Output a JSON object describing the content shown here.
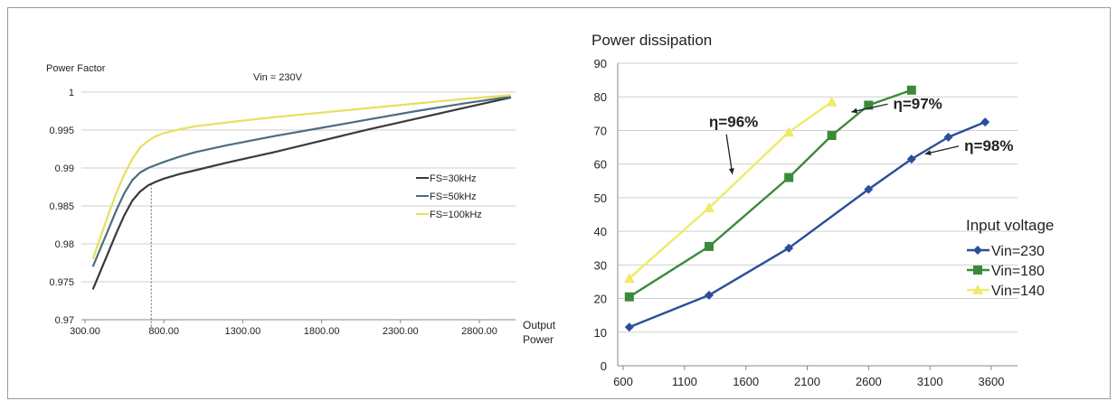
{
  "chart_data": [
    {
      "type": "line",
      "title": "",
      "ylabel": "Power Factor",
      "xlabel": "Output Power",
      "annotation": "Vin = 230V",
      "xlim": [
        300,
        3050
      ],
      "ylim": [
        0.97,
        1.0
      ],
      "x_ticks": [
        "300.00",
        "800.00",
        "1300.00",
        "1800.00",
        "2300.00",
        "2800.00"
      ],
      "x_tick_values": [
        300,
        800,
        1300,
        1800,
        2300,
        2800
      ],
      "y_ticks": [
        "0.97",
        "0.975",
        "0.98",
        "0.985",
        "0.99",
        "0.995",
        "1"
      ],
      "y_tick_values": [
        0.97,
        0.975,
        0.98,
        0.985,
        0.99,
        0.995,
        1.0
      ],
      "grid": "horizontal",
      "legend_position": "right",
      "reference_line_x": 720,
      "series": [
        {
          "name": "FS=30kHz",
          "color": "#3a3a3a",
          "x": [
            350,
            400,
            450,
            500,
            550,
            600,
            650,
            700,
            750,
            800,
            900,
            1000,
            1200,
            1500,
            1800,
            2100,
            2400,
            2700,
            3000
          ],
          "y": [
            0.974,
            0.9765,
            0.979,
            0.9815,
            0.9838,
            0.9857,
            0.9869,
            0.9877,
            0.9882,
            0.9886,
            0.9892,
            0.9897,
            0.9907,
            0.9921,
            0.9936,
            0.9951,
            0.9965,
            0.9979,
            0.9993
          ]
        },
        {
          "name": "FS=50kHz",
          "color": "#4a6e80",
          "x": [
            350,
            400,
            450,
            500,
            550,
            600,
            650,
            700,
            750,
            800,
            900,
            1000,
            1200,
            1500,
            1800,
            2100,
            2400,
            2700,
            3000
          ],
          "y": [
            0.977,
            0.9795,
            0.982,
            0.9845,
            0.9867,
            0.9884,
            0.9894,
            0.99,
            0.9904,
            0.9908,
            0.9915,
            0.9921,
            0.993,
            0.9942,
            0.9953,
            0.9964,
            0.9975,
            0.9985,
            0.9994
          ]
        },
        {
          "name": "FS=100kHz",
          "color": "#e6e05a",
          "x": [
            350,
            400,
            450,
            500,
            550,
            600,
            650,
            700,
            750,
            800,
            900,
            1000,
            1200,
            1500,
            1800,
            2100,
            2400,
            2700,
            3000
          ],
          "y": [
            0.978,
            0.981,
            0.984,
            0.9868,
            0.9892,
            0.9912,
            0.9927,
            0.9936,
            0.9942,
            0.9946,
            0.9951,
            0.9955,
            0.996,
            0.9967,
            0.9973,
            0.9979,
            0.9985,
            0.9991,
            0.9996
          ]
        }
      ]
    },
    {
      "type": "line",
      "title": "Power dissipation",
      "xlabel": "",
      "ylabel": "",
      "xlim": [
        600,
        3700
      ],
      "ylim": [
        0,
        90
      ],
      "x_ticks": [
        "600",
        "1100",
        "1600",
        "2100",
        "2600",
        "3100",
        "3600"
      ],
      "x_tick_values": [
        600,
        1100,
        1600,
        2100,
        2600,
        3100,
        3600
      ],
      "y_ticks": [
        "0",
        "10",
        "20",
        "30",
        "40",
        "50",
        "60",
        "70",
        "80",
        "90"
      ],
      "y_tick_values": [
        0,
        10,
        20,
        30,
        40,
        50,
        60,
        70,
        80,
        90
      ],
      "grid": "horizontal",
      "legend_title": "Input voltage",
      "legend_position": "right",
      "series": [
        {
          "name": "Vin=230",
          "color": "#2a4f9a",
          "marker": "diamond",
          "x": [
            650,
            1300,
            1950,
            2600,
            2950,
            3250,
            3550
          ],
          "y": [
            11.5,
            21,
            35,
            52.5,
            61.5,
            68,
            72.5
          ]
        },
        {
          "name": "Vin=180",
          "color": "#3b8a3b",
          "marker": "square",
          "x": [
            650,
            1300,
            1950,
            2300,
            2600,
            2950
          ],
          "y": [
            20.5,
            35.5,
            56,
            68.5,
            77.5,
            82
          ]
        },
        {
          "name": "Vin=140",
          "color": "#eeea6a",
          "marker": "triangle",
          "x": [
            650,
            1300,
            1950,
            2300
          ],
          "y": [
            26,
            47,
            69.5,
            78.5
          ]
        }
      ],
      "annotations": [
        {
          "text": "η=96%",
          "x": 1500,
          "y": 71,
          "arrow_to": [
            1490,
            57
          ]
        },
        {
          "text": "η=97%",
          "x": 2800,
          "y": 76.5,
          "arrow_to": [
            2460,
            75.5
          ]
        },
        {
          "text": "η=98%",
          "x": 3380,
          "y": 64,
          "arrow_to": [
            3060,
            63
          ]
        }
      ]
    }
  ]
}
